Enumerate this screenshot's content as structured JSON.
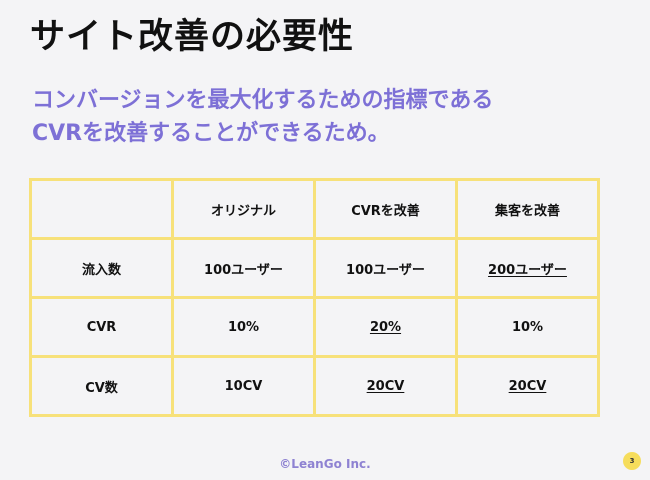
{
  "slide": {
    "title": "サイト改善の必要性",
    "subtitle_line1": "コンバージョンを最大化するための指標である",
    "subtitle_line2": "CVRを改善することができるため。"
  },
  "table": {
    "header": [
      "",
      "オリジナル",
      "CVRを改善",
      "集客を改善"
    ],
    "rows": [
      {
        "label": "流入数",
        "values": [
          "100ユーザー",
          "100ユーザー",
          "200ユーザー"
        ]
      },
      {
        "label": "CVR",
        "values": [
          "10%",
          "20%",
          "10%"
        ]
      },
      {
        "label": "CV数",
        "values": [
          "10CV",
          "20CV",
          "20CV"
        ]
      }
    ]
  },
  "footer": {
    "copyright": "©LeanGo Inc.",
    "page_number": "3"
  }
}
